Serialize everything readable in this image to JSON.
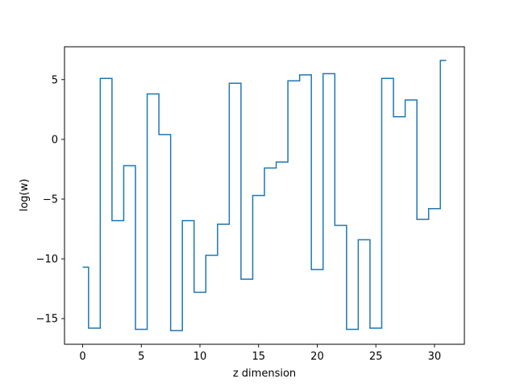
{
  "chart_data": {
    "type": "line",
    "step": "mid",
    "x": [
      0,
      1,
      2,
      3,
      4,
      5,
      6,
      7,
      8,
      9,
      10,
      11,
      12,
      13,
      14,
      15,
      16,
      17,
      18,
      19,
      20,
      21,
      22,
      23,
      24,
      25,
      26,
      27,
      28,
      29,
      30,
      31
    ],
    "values": [
      -10.7,
      -15.8,
      5.1,
      -6.8,
      -2.2,
      -15.9,
      3.8,
      0.4,
      -16.0,
      -6.8,
      -12.8,
      -9.7,
      -7.1,
      4.7,
      -11.7,
      -4.7,
      -2.4,
      -1.9,
      4.9,
      5.4,
      -10.9,
      5.5,
      -7.2,
      -15.9,
      -8.4,
      -15.8,
      5.1,
      1.9,
      3.3,
      -6.7,
      -5.8,
      6.6
    ],
    "xlabel": "z dimension",
    "ylabel": "log(w)",
    "xlim": [
      -1.55,
      32.55
    ],
    "ylim": [
      -17.15,
      7.75
    ],
    "xticks": [
      0,
      5,
      10,
      15,
      20,
      25,
      30
    ],
    "yticks": [
      -15,
      -10,
      -5,
      0,
      5
    ],
    "grid": false,
    "line_color": "#1f77b4"
  }
}
